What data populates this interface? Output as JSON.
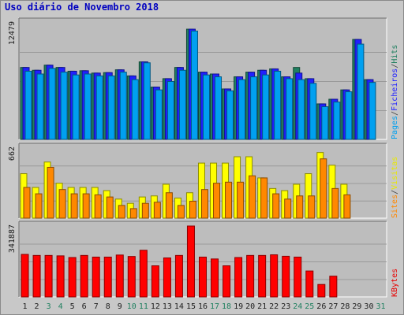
{
  "chart_data": {
    "type": "bar",
    "title": "Uso diário de Novembro 2018",
    "categories": [
      "1",
      "2",
      "3",
      "4",
      "5",
      "6",
      "7",
      "8",
      "9",
      "10",
      "11",
      "12",
      "13",
      "14",
      "15",
      "16",
      "17",
      "18",
      "19",
      "20",
      "21",
      "22",
      "23",
      "24",
      "25",
      "26",
      "27",
      "28",
      "29",
      "30",
      "31"
    ],
    "weekend_days": [
      "3",
      "4",
      "10",
      "11",
      "17",
      "18",
      "24",
      "25",
      "31"
    ],
    "panels": [
      {
        "id": "top",
        "ymax_label": "12479",
        "ylim": [
          0,
          12479
        ],
        "legend": [
          "Pages",
          "/",
          "Ficheiros",
          "/",
          "Hits"
        ],
        "legend_colors": [
          "#00a0f0",
          "#404040",
          "#2020ff",
          "#404040",
          "#208060"
        ],
        "series": [
          {
            "name": "Hits",
            "color": "#208060",
            "values": [
              7700,
              7400,
              7950,
              7700,
              7300,
              7350,
              7100,
              7150,
              7450,
              6800,
              8300,
              5600,
              6500,
              7700,
              11800,
              7200,
              7000,
              5400,
              6700,
              7200,
              7400,
              7550,
              6700,
              7700,
              6500,
              3800,
              4300,
              5300,
              10700,
              6400,
              0
            ]
          },
          {
            "name": "Ficheiros",
            "color": "#2020ff",
            "values": [
              7700,
              7400,
              7950,
              7700,
              7300,
              7350,
              7100,
              7150,
              7450,
              6800,
              8300,
              5600,
              6500,
              7700,
              11800,
              7200,
              7000,
              5400,
              6700,
              7200,
              7400,
              7550,
              6700,
              7100,
              6500,
              3800,
              4300,
              5300,
              10700,
              6400,
              0
            ]
          },
          {
            "name": "Pages",
            "color": "#00a0f0",
            "values": [
              7300,
              7000,
              7600,
              7200,
              6900,
              7000,
              6800,
              6800,
              7200,
              6400,
              8200,
              5300,
              6200,
              7400,
              11600,
              6900,
              6700,
              5200,
              6400,
              6700,
              6900,
              7300,
              6500,
              6400,
              6000,
              3500,
              4000,
              5100,
              10200,
              6100,
              0
            ]
          }
        ]
      },
      {
        "id": "mid",
        "ymax_label": "662",
        "ylim": [
          0,
          662
        ],
        "legend": [
          "Sites",
          "/",
          "Visitas"
        ],
        "legend_colors": [
          "#ff8800",
          "#404040",
          "#e8e800"
        ],
        "series": [
          {
            "name": "Visitas",
            "color": "#ffff00",
            "values": [
              420,
              290,
              530,
              330,
              290,
              290,
              290,
              260,
              180,
              140,
              200,
              210,
              320,
              190,
              240,
              520,
              520,
              520,
              580,
              580,
              380,
              280,
              260,
              320,
              420,
              620,
              500,
              320,
              0,
              0,
              0
            ]
          },
          {
            "name": "Sites",
            "color": "#ff8800",
            "values": [
              290,
              230,
              480,
              270,
              230,
              230,
              220,
              200,
              120,
              90,
              140,
              150,
              240,
              120,
              160,
              270,
              330,
              340,
              340,
              400,
              380,
              230,
              180,
              210,
              210,
              560,
              280,
              220,
              0,
              0,
              0
            ]
          }
        ]
      },
      {
        "id": "bot",
        "ymax_label": "341887",
        "ylim": [
          0,
          341887
        ],
        "legend": [
          "KBytes"
        ],
        "legend_colors": [
          "#e80000"
        ],
        "series": [
          {
            "name": "KBytes",
            "color": "#ff0000",
            "values": [
              205000,
              200000,
              200000,
              198000,
              190000,
              200000,
              192000,
              192000,
              202000,
              195000,
              225000,
              150000,
              188000,
              200000,
              341887,
              192000,
              183000,
              150000,
              190000,
              200000,
              200000,
              203000,
              196000,
              192000,
              125000,
              60000,
              100000,
              0,
              0,
              0,
              0
            ]
          }
        ]
      }
    ]
  }
}
